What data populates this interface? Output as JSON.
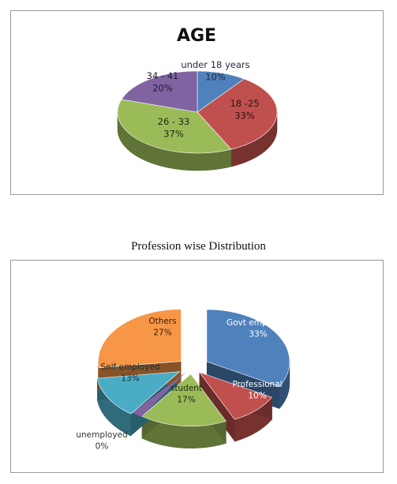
{
  "chart_data": [
    {
      "type": "pie",
      "title": "AGE",
      "categories": [
        "under 18 years",
        "18 -25",
        "26 - 33",
        "34 - 41"
      ],
      "values": [
        10,
        33,
        37,
        20
      ],
      "value_labels": [
        "10%",
        "33%",
        "37%",
        "20%"
      ],
      "colors": [
        "#4f81bd",
        "#c0504d",
        "#9bbb59",
        "#8064a2"
      ],
      "style": "3d"
    },
    {
      "type": "pie",
      "title": "Profession wise Distribution",
      "categories": [
        "Govt employee",
        "Professional",
        "student",
        "unemployed",
        "Self employed",
        "Others"
      ],
      "values": [
        33,
        10,
        17,
        0,
        13,
        27
      ],
      "value_labels": [
        "33%",
        "10%",
        "17%",
        "0%",
        "13%",
        "27%"
      ],
      "colors": [
        "#4f81bd",
        "#c0504d",
        "#9bbb59",
        "#8064a2",
        "#4bacc6",
        "#f79646"
      ],
      "style": "3d-exploded"
    }
  ]
}
